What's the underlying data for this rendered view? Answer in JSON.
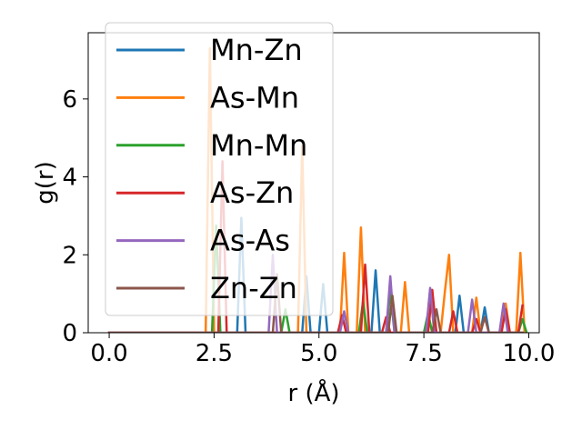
{
  "chart_data": {
    "type": "line",
    "title": "",
    "xlabel": "r (Å)",
    "ylabel": "g(r)",
    "xlim": [
      -0.5,
      10.25
    ],
    "ylim": [
      0,
      7.7
    ],
    "xticks": [
      0.0,
      2.5,
      5.0,
      7.5,
      10.0
    ],
    "xtick_labels": [
      "0.0",
      "2.5",
      "5.0",
      "7.5",
      "10.0"
    ],
    "yticks": [
      0,
      2,
      4,
      6
    ],
    "ytick_labels": [
      "0",
      "2",
      "4",
      "6"
    ],
    "grid": false,
    "legend_position": "upper-left",
    "series": [
      {
        "name": "Mn-Zn",
        "color": "#1f77b4",
        "points": [
          [
            0,
            0
          ],
          [
            3.05,
            0
          ],
          [
            3.15,
            2.95
          ],
          [
            3.25,
            0
          ],
          [
            4.6,
            0
          ],
          [
            4.7,
            1.45
          ],
          [
            4.8,
            0
          ],
          [
            5.0,
            0
          ],
          [
            5.1,
            1.25
          ],
          [
            5.2,
            0
          ],
          [
            6.25,
            0
          ],
          [
            6.35,
            1.6
          ],
          [
            6.45,
            0
          ],
          [
            8.25,
            0
          ],
          [
            8.35,
            0.95
          ],
          [
            8.45,
            0
          ],
          [
            8.85,
            0
          ],
          [
            8.95,
            0.65
          ],
          [
            9.05,
            0
          ],
          [
            9.85,
            0
          ]
        ]
      },
      {
        "name": "As-Mn",
        "color": "#ff7f0e",
        "points": [
          [
            0,
            0
          ],
          [
            2.3,
            0
          ],
          [
            2.4,
            7.3
          ],
          [
            2.5,
            0
          ],
          [
            4.5,
            0
          ],
          [
            4.6,
            4.8
          ],
          [
            4.7,
            0
          ],
          [
            5.5,
            0
          ],
          [
            5.6,
            2.05
          ],
          [
            5.7,
            0
          ],
          [
            5.9,
            0
          ],
          [
            6.0,
            2.7
          ],
          [
            6.1,
            0
          ],
          [
            6.95,
            0
          ],
          [
            7.05,
            1.3
          ],
          [
            7.15,
            0
          ],
          [
            7.55,
            0
          ],
          [
            7.65,
            1.1
          ],
          [
            7.75,
            0
          ],
          [
            7.9,
            0
          ],
          [
            8.0,
            1.05
          ],
          [
            8.1,
            2.0
          ],
          [
            8.2,
            0
          ],
          [
            8.65,
            0
          ],
          [
            8.75,
            0.9
          ],
          [
            8.85,
            0
          ],
          [
            9.35,
            0
          ],
          [
            9.45,
            0.75
          ],
          [
            9.55,
            0
          ],
          [
            9.7,
            0
          ],
          [
            9.8,
            2.05
          ],
          [
            9.9,
            0
          ]
        ]
      },
      {
        "name": "Mn-Mn",
        "color": "#2ca02c",
        "points": [
          [
            0,
            0
          ],
          [
            2.45,
            0
          ],
          [
            2.55,
            2.75
          ],
          [
            2.65,
            0
          ],
          [
            4.1,
            0
          ],
          [
            4.2,
            0.6
          ],
          [
            4.3,
            0
          ],
          [
            5.95,
            0
          ],
          [
            6.05,
            0.8
          ],
          [
            6.15,
            0
          ],
          [
            6.6,
            0
          ],
          [
            6.7,
            1.05
          ],
          [
            6.8,
            0
          ],
          [
            7.5,
            0
          ],
          [
            7.6,
            0.5
          ],
          [
            7.7,
            0
          ],
          [
            9.75,
            0
          ],
          [
            9.85,
            0.35
          ],
          [
            9.95,
            0
          ]
        ]
      },
      {
        "name": "As-Zn",
        "color": "#d62728",
        "points": [
          [
            0,
            0
          ],
          [
            2.6,
            0
          ],
          [
            2.7,
            4.4
          ],
          [
            2.8,
            0
          ],
          [
            5.45,
            0
          ],
          [
            5.55,
            0.45
          ],
          [
            5.65,
            0
          ],
          [
            6.0,
            0
          ],
          [
            6.1,
            1.75
          ],
          [
            6.2,
            0
          ],
          [
            6.5,
            0
          ],
          [
            6.6,
            0.4
          ],
          [
            6.7,
            0
          ],
          [
            7.6,
            0
          ],
          [
            7.7,
            1.1
          ],
          [
            7.8,
            0
          ],
          [
            8.1,
            0
          ],
          [
            8.2,
            0.55
          ],
          [
            8.3,
            0
          ],
          [
            8.65,
            0
          ],
          [
            8.75,
            0.35
          ],
          [
            8.85,
            0
          ],
          [
            9.35,
            0
          ],
          [
            9.45,
            0.6
          ],
          [
            9.55,
            0
          ],
          [
            9.75,
            0
          ],
          [
            9.85,
            0.7
          ]
        ]
      },
      {
        "name": "As-As",
        "color": "#9467bd",
        "points": [
          [
            0,
            0
          ],
          [
            3.8,
            0
          ],
          [
            3.9,
            2.0
          ],
          [
            4.0,
            0
          ],
          [
            5.5,
            0
          ],
          [
            5.6,
            0.55
          ],
          [
            5.7,
            0
          ],
          [
            6.6,
            0
          ],
          [
            6.7,
            1.45
          ],
          [
            6.8,
            0
          ],
          [
            7.55,
            0
          ],
          [
            7.65,
            1.15
          ],
          [
            7.75,
            0
          ],
          [
            8.55,
            0
          ],
          [
            8.65,
            0.85
          ],
          [
            8.75,
            0
          ],
          [
            9.3,
            0
          ],
          [
            9.4,
            0.75
          ],
          [
            9.5,
            0
          ],
          [
            9.85,
            0
          ]
        ]
      },
      {
        "name": "Zn-Zn",
        "color": "#8c564b",
        "points": [
          [
            0,
            0
          ],
          [
            3.9,
            0
          ],
          [
            4.0,
            1.5
          ],
          [
            4.1,
            0
          ],
          [
            6.65,
            0
          ],
          [
            6.75,
            0.95
          ],
          [
            6.85,
            0
          ],
          [
            7.7,
            0
          ],
          [
            7.8,
            0.6
          ],
          [
            7.9,
            0
          ],
          [
            8.85,
            0
          ],
          [
            8.95,
            0.4
          ],
          [
            9.05,
            0
          ],
          [
            9.85,
            0
          ]
        ]
      }
    ]
  }
}
